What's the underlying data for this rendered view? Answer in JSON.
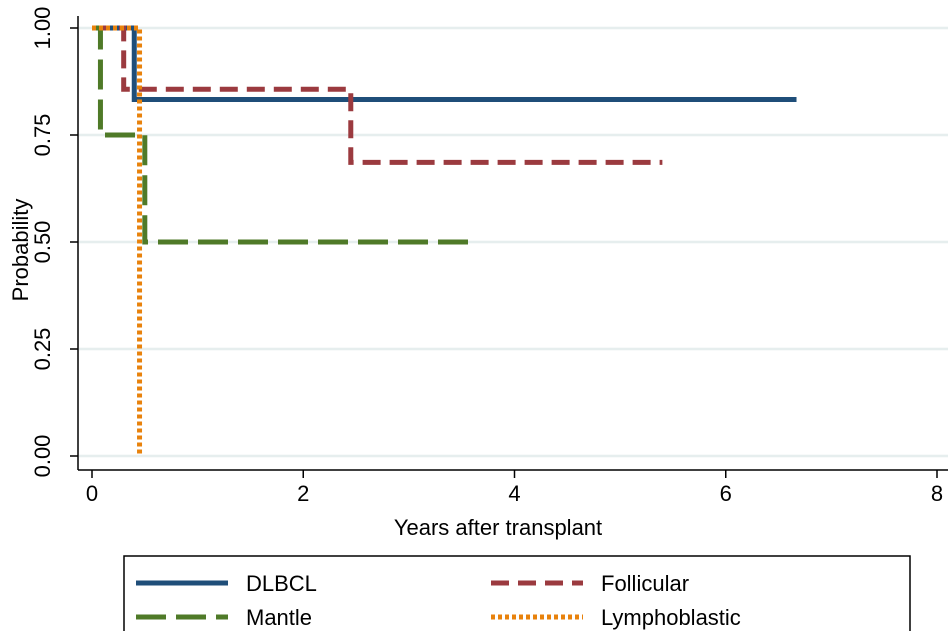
{
  "chart_data": {
    "type": "line",
    "step": true,
    "xlabel": "Years after transplant",
    "ylabel": "Probability",
    "xlim": [
      0,
      8
    ],
    "ylim": [
      0,
      1
    ],
    "x_ticks": [
      0,
      2,
      4,
      6,
      8
    ],
    "x_tick_labels": [
      "0",
      "2",
      "4",
      "6",
      "8"
    ],
    "y_ticks": [
      0,
      0.25,
      0.5,
      0.75,
      1
    ],
    "y_tick_labels": [
      "0.00",
      "0.25",
      "0.50",
      "0.75",
      "1.00"
    ],
    "grid": "horizontal",
    "legend_position": "bottom",
    "series": [
      {
        "name": "DLBCL",
        "color": "#1f4e79",
        "style": "solid",
        "x": [
          0,
          0.4,
          0.4,
          6.67
        ],
        "y": [
          1.0,
          1.0,
          0.833,
          0.833
        ]
      },
      {
        "name": "Follicular",
        "color": "#9b3a3f",
        "style": "dashed",
        "x": [
          0,
          0.3,
          0.3,
          2.45,
          2.45,
          5.4
        ],
        "y": [
          1.0,
          1.0,
          0.857,
          0.857,
          0.686,
          0.686
        ]
      },
      {
        "name": "Mantle",
        "color": "#4f7a28",
        "style": "longdash",
        "x": [
          0,
          0.08,
          0.08,
          0.5,
          0.5,
          3.65
        ],
        "y": [
          1.0,
          1.0,
          0.75,
          0.75,
          0.5,
          0.5
        ]
      },
      {
        "name": "Lymphoblastic",
        "color": "#e8820c",
        "style": "dotted",
        "x": [
          0,
          0.45,
          0.45
        ],
        "y": [
          1.0,
          1.0,
          0.0
        ]
      }
    ]
  }
}
